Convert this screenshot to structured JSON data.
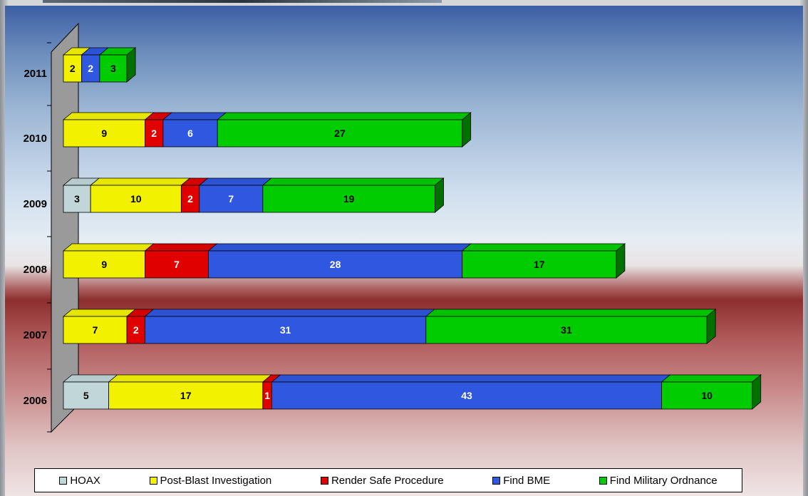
{
  "chart_data": {
    "type": "bar",
    "orientation": "horizontal",
    "stacked": true,
    "three_d": true,
    "categories": [
      "2011",
      "2010",
      "2009",
      "2008",
      "2007",
      "2006"
    ],
    "series": [
      {
        "name": "HOAX",
        "color": "#c0d6d8",
        "label_color": "#000000",
        "values": [
          0,
          0,
          3,
          0,
          0,
          5
        ]
      },
      {
        "name": "Post-Blast Investigation",
        "color": "#f2f200",
        "label_color": "#000000",
        "values": [
          2,
          9,
          10,
          9,
          7,
          17
        ]
      },
      {
        "name": "Render Safe Procedure",
        "color": "#e00000",
        "label_color": "#ffffff",
        "values": [
          0,
          2,
          2,
          7,
          2,
          1
        ]
      },
      {
        "name": "Find BME",
        "color": "#2f57e0",
        "label_color": "#ffffff",
        "values": [
          2,
          6,
          7,
          28,
          31,
          43
        ]
      },
      {
        "name": "Find Military Ordnance",
        "color": "#00cc00",
        "label_color": "#000000",
        "values": [
          3,
          27,
          19,
          17,
          31,
          10
        ]
      }
    ],
    "xlim": [
      0,
      76
    ],
    "legend_position": "bottom",
    "grid": false
  }
}
